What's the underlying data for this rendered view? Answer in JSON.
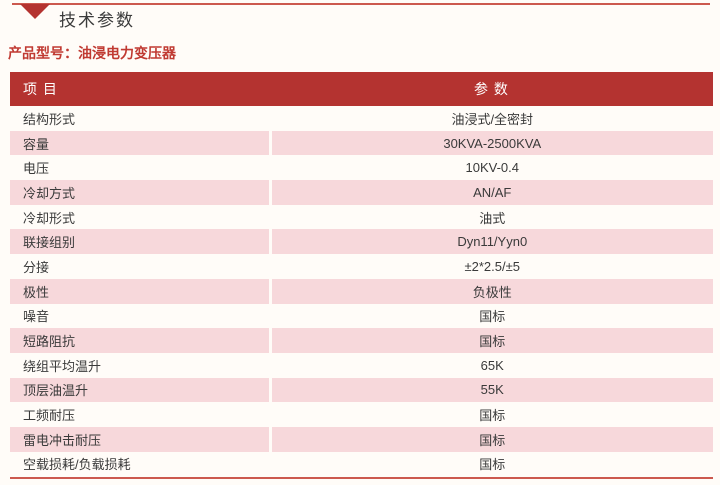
{
  "colors": {
    "page_bg": "#fffcf8",
    "accent_line": "#cc594f",
    "header_bg": "#b43330",
    "header_text": "#ffffff",
    "row_pink": "#f7d8db",
    "body_text": "#3a3a3a",
    "title_text": "#3b3b3b",
    "product_model_text": "#c03a32",
    "triangle": "#b43330"
  },
  "header": {
    "triangle_icon": "triangle-down-icon",
    "title": "技术参数"
  },
  "product_model": {
    "text": "产品型号：油浸电力变压器"
  },
  "table": {
    "columns": {
      "item": "项 目",
      "param": "参 数"
    },
    "rows": [
      {
        "item": "结构形式",
        "param": "油浸式/全密封"
      },
      {
        "item": "容量",
        "param": "30KVA-2500KVA"
      },
      {
        "item": "电压",
        "param": "10KV-0.4"
      },
      {
        "item": "冷却方式",
        "param": "AN/AF"
      },
      {
        "item": "冷却形式",
        "param": "油式"
      },
      {
        "item": "联接组别",
        "param": "Dyn11/Yyn0"
      },
      {
        "item": "分接",
        "param": "±2*2.5/±5"
      },
      {
        "item": "极性",
        "param": "负极性"
      },
      {
        "item": "噪音",
        "param": "国标"
      },
      {
        "item": "短路阻抗",
        "param": "国标"
      },
      {
        "item": "绕组平均温升",
        "param": "65K"
      },
      {
        "item": "顶层油温升",
        "param": "55K"
      },
      {
        "item": "工频耐压",
        "param": "国标"
      },
      {
        "item": "雷电冲击耐压",
        "param": "国标"
      },
      {
        "item": "空载损耗/负载损耗",
        "param": "国标"
      }
    ]
  }
}
